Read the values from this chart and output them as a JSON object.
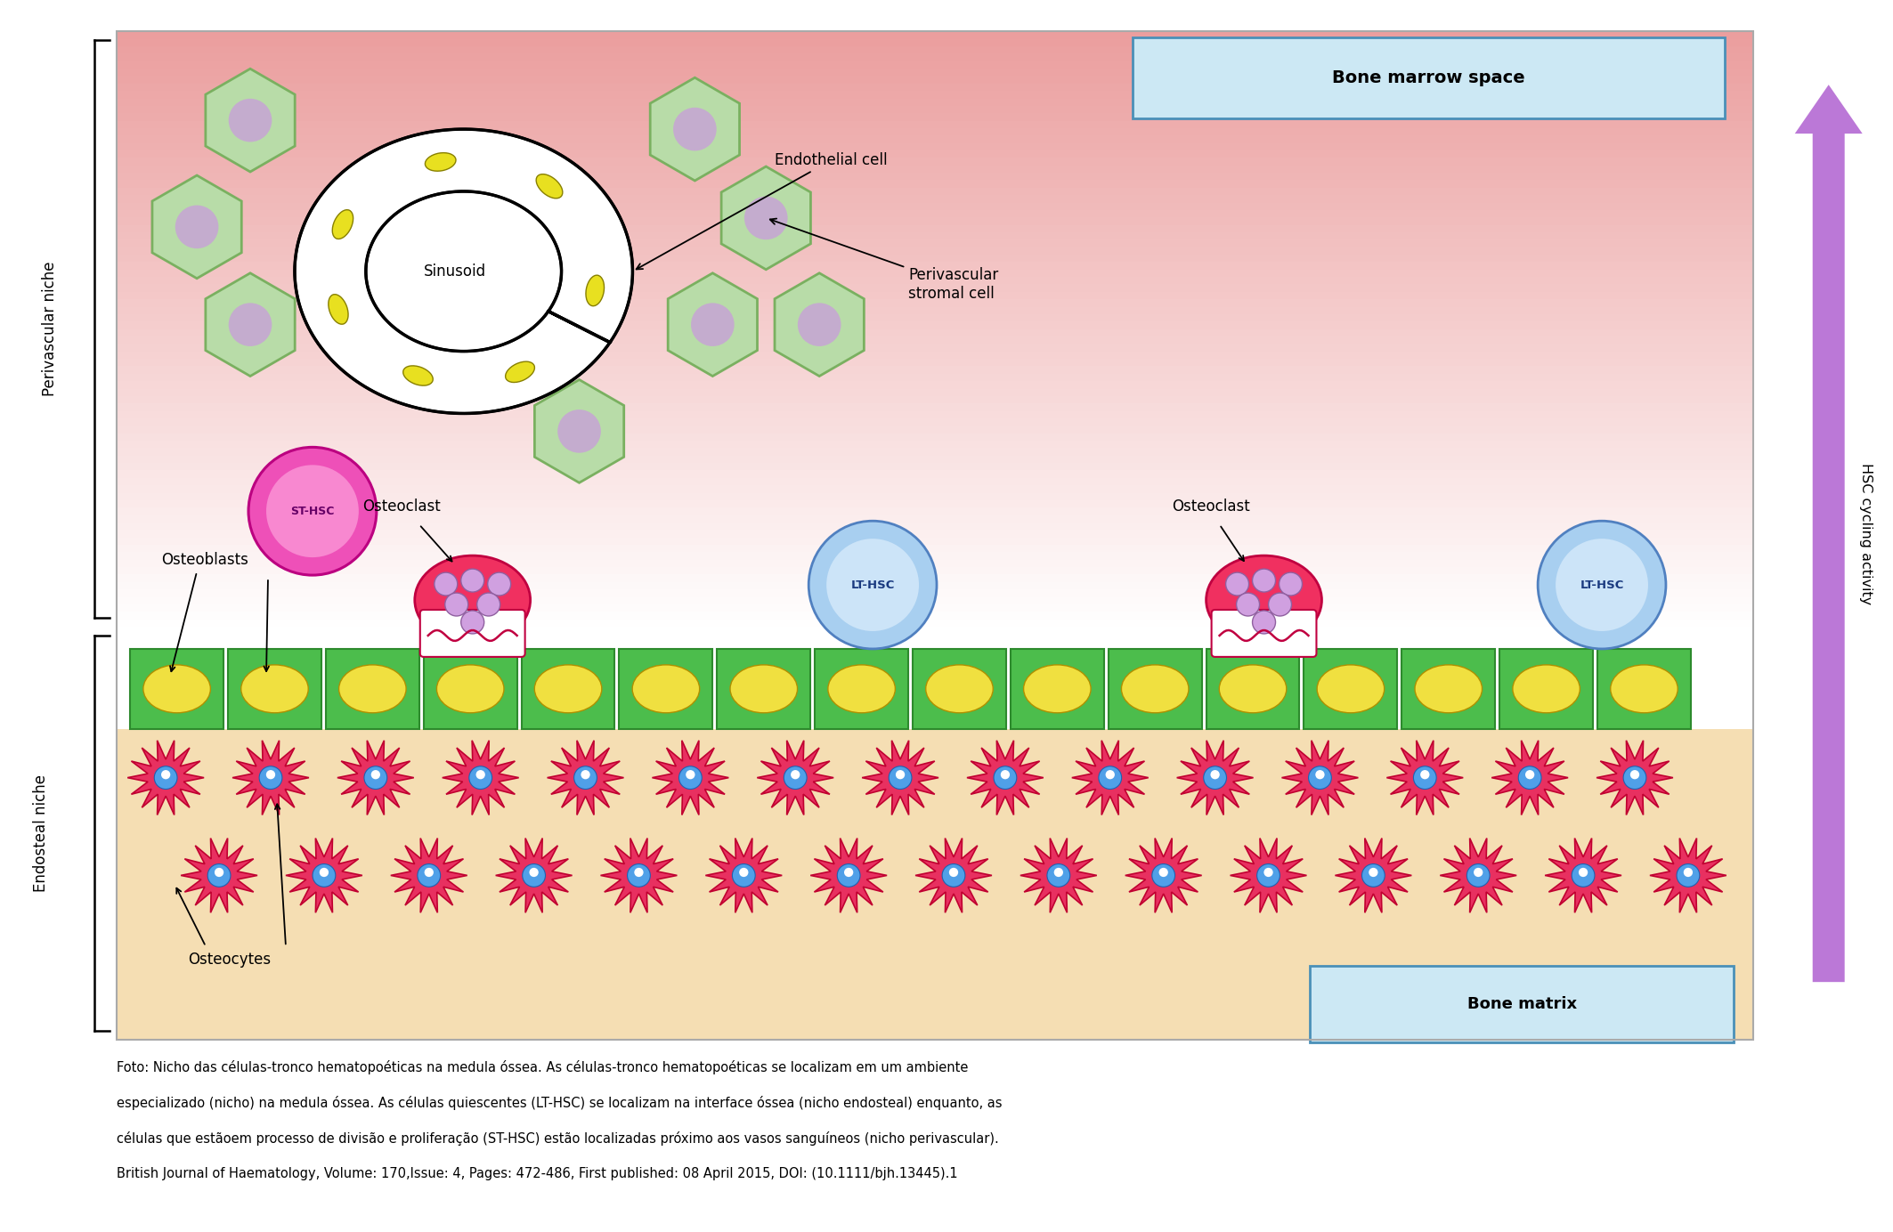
{
  "caption_lines": [
    "Foto: Nicho das células-tronco hematopoéticas na medula óssea. As células-tronco hematopoéticas se localizam em um ambiente",
    "especializado (nicho) na medula óssea. As células quiescentes (LT-HSC) se localizam na interface óssea (nicho endosteal) enquanto, as",
    "células que estãoem processo de divisão e proliferação (ST-HSC) estão localizadas próximo aos vasos sanguíneos (nicho perivascular).",
    "British Journal of Haematology, Volume: 170,Issue: 4, Pages: 472-486, First published: 08 April 2015, DOI: (10.1111/bjh.13445).1"
  ],
  "bone_marrow_label": "Bone marrow space",
  "bone_matrix_label": "Bone matrix",
  "perivascular_label": "Perivascular niche",
  "endosteal_label": "Endosteal niche",
  "hsc_cycling_label": "HSC cycling activity",
  "sinusoid_label": "Sinusoid",
  "endothelial_label": "Endothelial cell",
  "perivascular_stromal_label": "Perivascular\nstromal cell",
  "st_hsc_label": "ST-HSC",
  "osteoblasts_label": "Osteoblasts",
  "osteoclast_label": "Osteoclast",
  "lt_hsc_label": "LT-HSC",
  "osteocytes_label": "Osteocytes",
  "arrow_color": "#9b59b6"
}
